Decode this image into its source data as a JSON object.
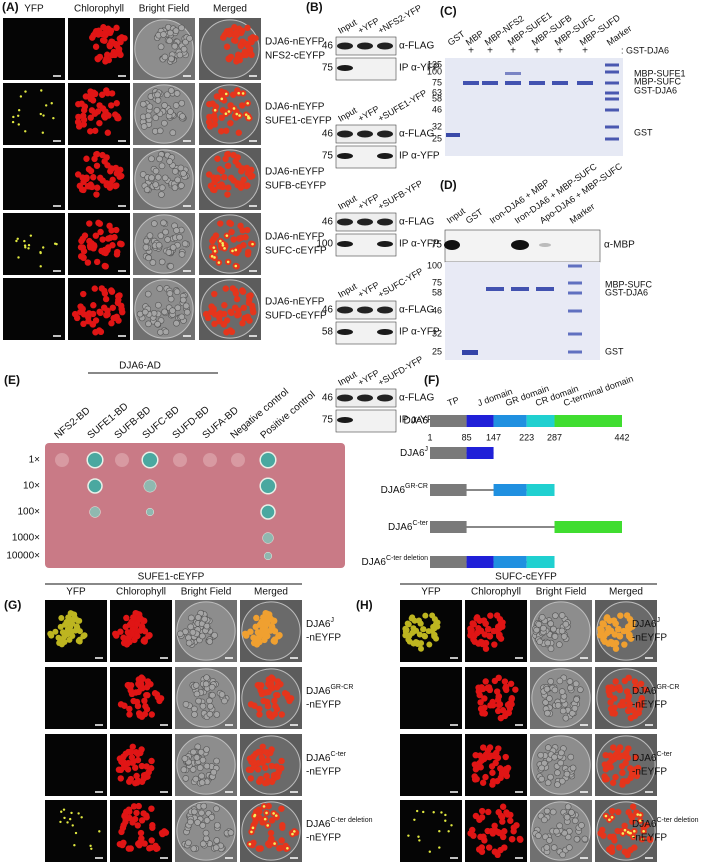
{
  "panel_a": {
    "label": "(A)",
    "headers": [
      "YFP",
      "Chlorophyll",
      "Bright Field",
      "Merged"
    ],
    "rows": [
      [
        "DJA6-nEYFP",
        "NFS2-cEYFP"
      ],
      [
        "DJA6-nEYFP",
        "SUFE1-cEYFP"
      ],
      [
        "DJA6-nEYFP",
        "SUFB-cEYFP"
      ],
      [
        "DJA6-nEYFP",
        "SUFC-cEYFP"
      ],
      [
        "DJA6-nEYFP",
        "SUFD-cEYFP"
      ]
    ]
  },
  "panel_b": {
    "label": "(B)",
    "blots": [
      {
        "lanes": [
          "Input",
          "+YFP",
          "+NFS2-YFP"
        ],
        "markers": [
          46,
          75
        ],
        "antibodies": [
          "α-FLAG",
          "IP α-YFP"
        ]
      },
      {
        "lanes": [
          "Input",
          "+YFP",
          "+SUFE1-YFP"
        ],
        "markers": [
          46,
          75
        ],
        "antibodies": [
          "α-FLAG",
          "IP α-YFP"
        ]
      },
      {
        "lanes": [
          "Input",
          "+YFP",
          "+SUFB-YFP"
        ],
        "markers": [
          46,
          100
        ],
        "antibodies": [
          "α-FLAG",
          "IP α-YFP"
        ]
      },
      {
        "lanes": [
          "Input",
          "+YFP",
          "+SUFC-YFP"
        ],
        "markers": [
          46,
          58
        ],
        "antibodies": [
          "α-FLAG",
          "IP α-YFP"
        ]
      },
      {
        "lanes": [
          "Input",
          "+YFP",
          "+SUFD-YFP"
        ],
        "markers": [
          46,
          75
        ],
        "antibodies": [
          "α-FLAG",
          "IP α-YFP"
        ]
      }
    ]
  },
  "panel_c": {
    "label": "(C)",
    "lanes": [
      "GST",
      "MBP",
      "MBP-NFS2",
      "MBP-SUFE1",
      "MBP-SUFB",
      "MBP-SUFC",
      "MBP-SUFD",
      "Marker"
    ],
    "plus": [
      "+",
      "+",
      "+",
      "+",
      "+",
      "+"
    ],
    "bait": ": GST-DJA6",
    "markers": [
      135,
      100,
      75,
      63,
      58,
      46,
      32,
      25
    ],
    "bands": [
      "MBP-SUFE1",
      "MBP-SUFC",
      "GST-DJA6",
      "GST"
    ]
  },
  "panel_d": {
    "label": "(D)",
    "lanes": [
      "Input",
      "GST",
      "Iron-DJA6 + MBP",
      "Iron-DJA6 + MBP-SUFC",
      "Apo-DJA6 + MBP-SUFC",
      "Marker"
    ],
    "blot_marker": 75,
    "antibody": "α-MBP",
    "markers": [
      100,
      75,
      58,
      46,
      32,
      25
    ],
    "bands": [
      "MBP-SUFC",
      "GST-DJA6",
      "GST"
    ]
  },
  "panel_e": {
    "label": "(E)",
    "group": "DJA6-AD",
    "columns": [
      "NFS2-BD",
      "SUFE1-BD",
      "SUFB-BD",
      "SUFC-BD",
      "SUFD-BD",
      "SUFA-BD",
      "Negative control",
      "Positive control"
    ],
    "dilutions": [
      "1×",
      "10×",
      "100×",
      "1000×",
      "10000×"
    ]
  },
  "panel_f": {
    "label": "(F)",
    "protein": "DJA6",
    "domains": [
      "TP",
      "J domain",
      "GR domain",
      "CR domain",
      "C-terminal domain"
    ],
    "positions": [
      1,
      85,
      147,
      223,
      287,
      442
    ],
    "constructs": [
      {
        "name": "DJA6",
        "sup": "J"
      },
      {
        "name": "DJA6",
        "sup": "GR-CR"
      },
      {
        "name": "DJA6",
        "sup": "C-ter"
      },
      {
        "name": "DJA6",
        "sup": "C-ter deletion"
      }
    ]
  },
  "panel_g": {
    "label": "(G)",
    "title": "SUFE1-cEYFP",
    "headers": [
      "YFP",
      "Chlorophyll",
      "Bright Field",
      "Merged"
    ],
    "rows": [
      {
        "name": "DJA6",
        "sup": "J",
        "suffix": "-nEYFP"
      },
      {
        "name": "DJA6",
        "sup": "GR-CR",
        "suffix": "-nEYFP"
      },
      {
        "name": "DJA6",
        "sup": "C-ter",
        "suffix": "-nEYFP"
      },
      {
        "name": "DJA6",
        "sup": "C-ter deletion",
        "suffix": "-nEYFP"
      }
    ]
  },
  "panel_h": {
    "label": "(H)",
    "title": "SUFC-cEYFP",
    "headers": [
      "YFP",
      "Chlorophyll",
      "Bright Field",
      "Merged"
    ],
    "rows": [
      {
        "name": "DJA6",
        "sup": "J",
        "suffix": "-nEYFP"
      },
      {
        "name": "DJA6",
        "sup": "GR-CR",
        "suffix": "-nEYFP"
      },
      {
        "name": "DJA6",
        "sup": "C-ter",
        "suffix": "-nEYFP"
      },
      {
        "name": "DJA6",
        "sup": "C-ter deletion",
        "suffix": "-nEYFP"
      }
    ]
  }
}
